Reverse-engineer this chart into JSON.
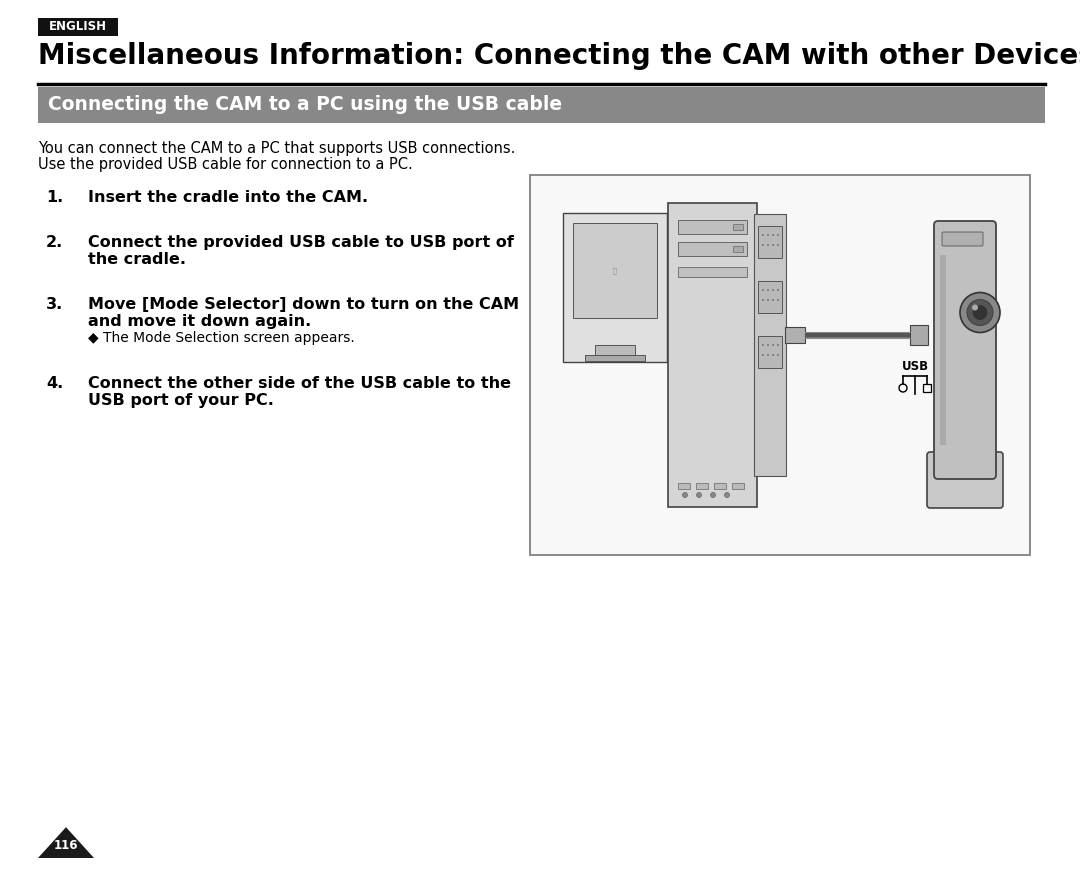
{
  "bg_color": "#ffffff",
  "english_label": "ENGLISH",
  "english_bg": "#111111",
  "english_text_color": "#ffffff",
  "main_title": "Miscellaneous Information: Connecting the CAM with other Devices",
  "main_title_fontsize": 20,
  "section_bg": "#888888",
  "section_title": "Connecting the CAM to a PC using the USB cable",
  "section_title_color": "#ffffff",
  "section_title_fontsize": 13.5,
  "intro_line1": "You can connect the CAM to a PC that supports USB connections.",
  "intro_line2": "Use the provided USB cable for connection to a PC.",
  "intro_fontsize": 10.5,
  "steps": [
    {
      "num": "1.",
      "bold": "Insert the cradle into the CAM.",
      "normal": "",
      "sub": ""
    },
    {
      "num": "2.",
      "bold": "Connect the provided USB cable to USB port of",
      "normal": "the cradle.",
      "sub": ""
    },
    {
      "num": "3.",
      "bold": "Move [Mode Selector] down to turn on the CAM",
      "normal": "and move it down again.",
      "sub": "◆ The Mode Selection screen appears."
    },
    {
      "num": "4.",
      "bold": "Connect the other side of the USB cable to the",
      "normal": "USB port of your PC.",
      "sub": ""
    }
  ],
  "step_fontsize": 11.5,
  "sub_fontsize": 10,
  "page_num": "116",
  "divider_color": "#000000"
}
